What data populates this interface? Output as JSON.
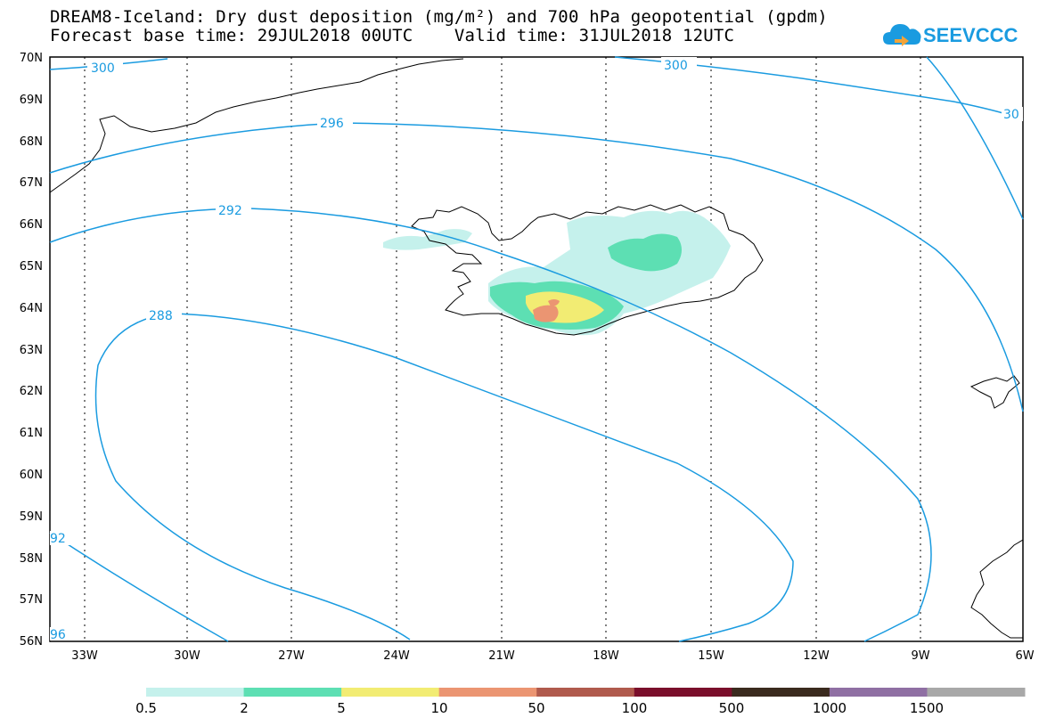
{
  "header": {
    "title_line1": "DREAM8-Iceland: Dry dust deposition (mg/m²) and 700 hPa geopotential (gpdm)",
    "title_line2": "Forecast base time: 29JUL2018 00UTC    Valid time: 31JUL2018 12UTC"
  },
  "logo": {
    "text": "SEEVCCC",
    "icon": "cloud-icon",
    "color": "#1a9be0"
  },
  "map": {
    "lat_labels": [
      "70N",
      "69N",
      "68N",
      "67N",
      "66N",
      "65N",
      "64N",
      "63N",
      "62N",
      "61N",
      "60N",
      "59N",
      "58N",
      "57N",
      "56N"
    ],
    "lon_labels": [
      "33W",
      "30W",
      "27W",
      "24W",
      "21W",
      "18W",
      "15W",
      "12W",
      "9W",
      "6W"
    ],
    "contour_color": "#1a9be0",
    "contour_labels": [
      "300",
      "300",
      "30",
      "296",
      "292",
      "288",
      "92",
      "96"
    ]
  },
  "colorbar": {
    "labels": [
      "0.5",
      "2",
      "5",
      "10",
      "50",
      "100",
      "500",
      "1000",
      "1500"
    ],
    "colors": [
      "#c5f1ec",
      "#5ddfb3",
      "#f2ec73",
      "#eb9572",
      "#b05a4d",
      "#7a0e2b",
      "#3a2a1e",
      "#8f6fa3",
      "#a8a8a8"
    ]
  }
}
